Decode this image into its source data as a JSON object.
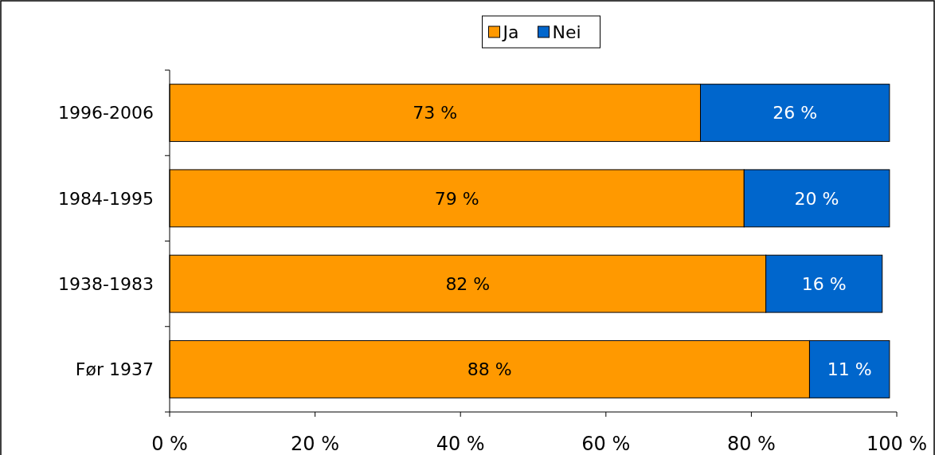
{
  "chart_data": {
    "type": "bar",
    "orientation": "horizontal",
    "stacked": true,
    "categories": [
      "1996-2006",
      "1984-1995",
      "1938-1983",
      "Før 1937"
    ],
    "series": [
      {
        "name": "Ja",
        "color": "#ff9900",
        "values": [
          73,
          79,
          82,
          88
        ],
        "value_labels": [
          "73 %",
          "79 %",
          "82 %",
          "88 %"
        ]
      },
      {
        "name": "Nei",
        "color": "#0066cc",
        "values": [
          26,
          20,
          16,
          11
        ],
        "value_labels": [
          "26 %",
          "20 %",
          "16 %",
          "11 %"
        ]
      }
    ],
    "xlim": [
      0,
      100
    ],
    "xticks": [
      {
        "value": 0,
        "label": "0 %"
      },
      {
        "value": 20,
        "label": "20 %"
      },
      {
        "value": 40,
        "label": "40 %"
      },
      {
        "value": 60,
        "label": "60 %"
      },
      {
        "value": 80,
        "label": "80 %"
      },
      {
        "value": 100,
        "label": "100 %"
      }
    ],
    "grid": false,
    "legend": "top"
  }
}
